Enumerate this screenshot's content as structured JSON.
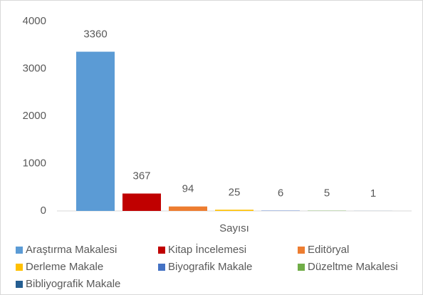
{
  "chart_data": {
    "type": "bar",
    "categories": [
      "Sayısı"
    ],
    "series": [
      {
        "name": "Araştırma Makalesi",
        "color": "#5b9bd5",
        "values": [
          3360
        ]
      },
      {
        "name": "Kitap İncelemesi",
        "color": "#c00000",
        "values": [
          367
        ]
      },
      {
        "name": "Editöryal",
        "color": "#ed7d31",
        "values": [
          94
        ]
      },
      {
        "name": "Derleme Makale",
        "color": "#ffc000",
        "values": [
          25
        ]
      },
      {
        "name": "Biyografik Makale",
        "color": "#4472c4",
        "values": [
          6
        ]
      },
      {
        "name": "Düzeltme Makalesi",
        "color": "#70ad47",
        "values": [
          5
        ]
      },
      {
        "name": "Bibliyografik Makale",
        "color": "#255e91",
        "values": [
          1
        ]
      }
    ],
    "ylim": [
      0,
      4000
    ],
    "yticks": [
      0,
      1000,
      2000,
      3000,
      4000
    ],
    "grid": false,
    "legend": "bottom"
  }
}
